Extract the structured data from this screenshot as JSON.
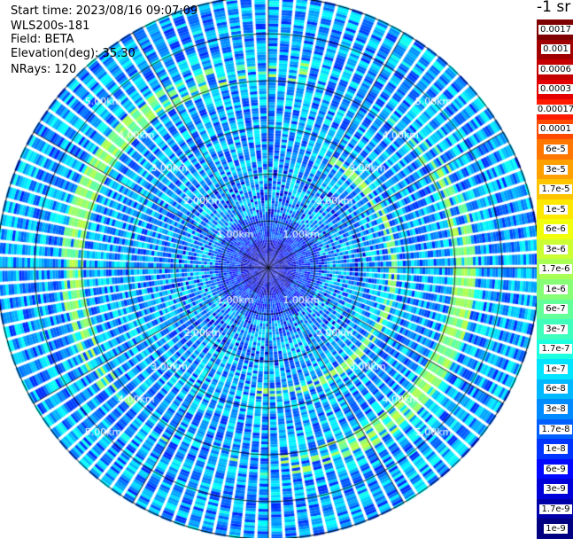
{
  "header": {
    "start_time": "Start time: 2023/08/16 09:07:09",
    "instrument": "WLS200s-181",
    "field": "Field: BETA",
    "elevation": "Elevation(deg): 35.30",
    "nrays": "NRays: 120"
  },
  "colorbar": {
    "title": "-1 sr",
    "labels": [
      "0.0017",
      "0.001",
      "0.0006",
      "0.0003",
      "0.00017",
      "0.0001",
      "6e-5",
      "3e-5",
      "1.7e-5",
      "1e-5",
      "6e-6",
      "3e-6",
      "1.7e-6",
      "1e-6",
      "6e-7",
      "3e-7",
      "1.7e-7",
      "1e-7",
      "6e-8",
      "3e-8",
      "1.7e-8",
      "1e-8",
      "6e-9",
      "3e-9",
      "1.7e-9",
      "1e-9"
    ],
    "colors": [
      "#7f0000",
      "#a00000",
      "#c40000",
      "#e40000",
      "#ff1a00",
      "#ff4a00",
      "#ff7700",
      "#ff9f00",
      "#ffc400",
      "#ffe800",
      "#f2ff0c",
      "#ccff33",
      "#a9ff55",
      "#86ff77",
      "#63ff9a",
      "#3fffbd",
      "#1effdf",
      "#00e4ff",
      "#00b8ff",
      "#008cff",
      "#0060ff",
      "#0034ff",
      "#0008ff",
      "#0000d8",
      "#0000a8",
      "#000080"
    ]
  },
  "chart_data": {
    "type": "heatmap",
    "projection": "polar (PPI scan)",
    "field": "BETA",
    "elevation_deg": 35.3,
    "n_rays": 120,
    "range_rings_km": [
      1,
      2,
      3,
      4,
      5
    ],
    "range_ring_labels": [
      "1.00km",
      "2.00km",
      "3.00km",
      "4.00km",
      "5.00km"
    ],
    "color_scale": "log",
    "value_range": [
      1e-09,
      0.0017
    ],
    "dominant_value_range": [
      1e-08,
      3e-07
    ],
    "features": {
      "elevated_backscatter_ring_km": [
        3.9,
        4.4
      ],
      "elevated_backscatter_value": 1.7e-06,
      "low_backscatter_core_km": [
        0,
        0.6
      ],
      "low_backscatter_core_value": 1e-09
    }
  }
}
